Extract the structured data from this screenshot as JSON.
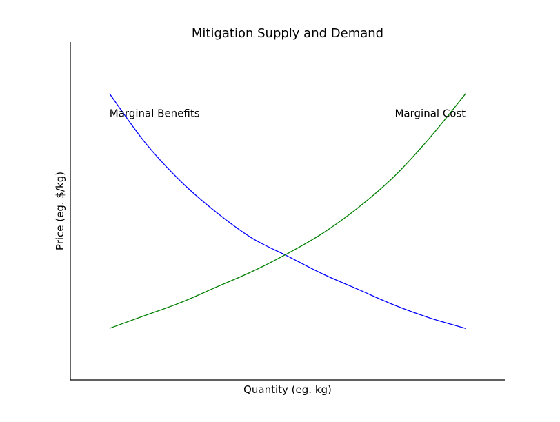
{
  "chart_data": {
    "type": "line",
    "title": "Mitigation Supply and Demand",
    "xlabel": "Quantity (eg. kg)",
    "ylabel": "Price (eg. $/kg)",
    "xlim": [
      0,
      1.22
    ],
    "ylim": [
      0,
      1.31
    ],
    "grid": false,
    "x_ticks_shown": false,
    "y_ticks_shown": false,
    "series": [
      {
        "name": "Marginal Benefits",
        "color": "#0000ff",
        "x": [
          0.11,
          0.21,
          0.31,
          0.41,
          0.51,
          0.61,
          0.71,
          0.81,
          0.91,
          1.01,
          1.11
        ],
        "y": [
          1.11,
          0.92,
          0.77,
          0.65,
          0.55,
          0.48,
          0.41,
          0.35,
          0.29,
          0.24,
          0.2
        ]
      },
      {
        "name": "Marginal Cost",
        "color": "#008000",
        "x": [
          0.11,
          0.21,
          0.31,
          0.41,
          0.51,
          0.61,
          0.71,
          0.81,
          0.91,
          1.01,
          1.11
        ],
        "y": [
          0.2,
          0.25,
          0.3,
          0.36,
          0.42,
          0.49,
          0.57,
          0.67,
          0.79,
          0.94,
          1.11
        ]
      }
    ],
    "annotations": [
      {
        "text": "Marginal Benefits",
        "x": 0.11,
        "y": 1.02,
        "anchor": "start"
      },
      {
        "text": "Marginal Cost",
        "x": 1.11,
        "y": 1.02,
        "anchor": "end"
      }
    ]
  }
}
